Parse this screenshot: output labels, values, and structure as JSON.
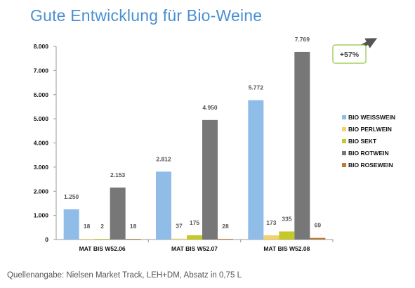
{
  "title": "Gute Entwicklung für Bio-Weine",
  "source": "Quellenangabe: Nielsen Market Track, LEH+DM, Absatz in 0,75 L",
  "callout": {
    "text": "+57%",
    "border_color": "#8cc63f"
  },
  "chart_data": {
    "type": "bar",
    "title": "",
    "xlabel": "",
    "ylabel": "",
    "ylim": [
      0,
      8000
    ],
    "ytick_values": [
      0,
      1000,
      2000,
      3000,
      4000,
      5000,
      6000,
      7000,
      8000
    ],
    "ytick_labels": [
      "0",
      "1.000",
      "2.000",
      "3.000",
      "4.000",
      "5.000",
      "6.000",
      "7.000",
      "8.000"
    ],
    "grid": false,
    "legend_position": "right",
    "categories": [
      "MAT BIS W52.06",
      "MAT BIS W52.07",
      "MAT BIS W52.08"
    ],
    "series": [
      {
        "name": "BIO WEISSWEIN",
        "color": "#8fbde8",
        "values": [
          1250,
          2812,
          5772
        ],
        "labels": [
          "1.250",
          "2.812",
          "5.772"
        ]
      },
      {
        "name": "BIO PERLWEIN",
        "color": "#f2d26a",
        "values": [
          18,
          37,
          173
        ],
        "labels": [
          "18",
          "37",
          "173"
        ]
      },
      {
        "name": "BIO SEKT",
        "color": "#c4c82b",
        "values": [
          2,
          175,
          335
        ],
        "labels": [
          "2",
          "175",
          "335"
        ]
      },
      {
        "name": "BIO ROTWEIN",
        "color": "#777777",
        "values": [
          2153,
          4950,
          7769
        ],
        "labels": [
          "2.153",
          "4.950",
          "7.769"
        ]
      },
      {
        "name": "BIO ROSEWEIN",
        "color": "#b97a3e",
        "values": [
          18,
          28,
          69
        ],
        "labels": [
          "18",
          "28",
          "69"
        ]
      }
    ]
  }
}
